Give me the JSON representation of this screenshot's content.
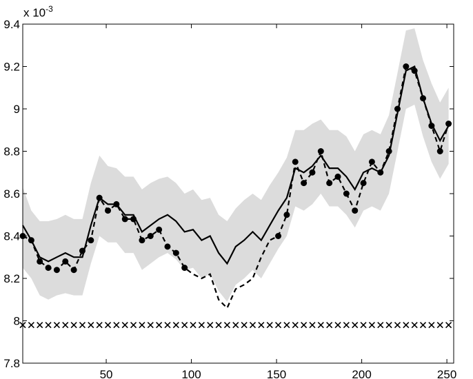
{
  "chart_data": {
    "type": "line",
    "y_exponent_label": {
      "base": "x 10",
      "exponent": "-3"
    },
    "xlim": [
      1,
      254
    ],
    "ylim": [
      7.8,
      9.4
    ],
    "xticks": [
      50,
      100,
      150,
      200,
      250
    ],
    "yticks": [
      7.8,
      8,
      8.2,
      8.4,
      8.6,
      8.8,
      9,
      9.2,
      9.4
    ],
    "grid": false,
    "x": [
      1,
      6,
      11,
      16,
      21,
      26,
      31,
      36,
      41,
      46,
      51,
      56,
      61,
      66,
      71,
      76,
      81,
      86,
      91,
      96,
      101,
      106,
      111,
      116,
      121,
      126,
      131,
      136,
      141,
      146,
      151,
      156,
      161,
      166,
      171,
      176,
      181,
      186,
      191,
      196,
      201,
      206,
      211,
      216,
      221,
      226,
      231,
      236,
      241,
      246,
      251
    ],
    "series": [
      {
        "style": "band",
        "color": "#dcdcdc",
        "upper": [
          8.63,
          8.52,
          8.47,
          8.47,
          8.48,
          8.5,
          8.48,
          8.48,
          8.65,
          8.78,
          8.73,
          8.72,
          8.68,
          8.68,
          8.62,
          8.65,
          8.67,
          8.68,
          8.65,
          8.6,
          8.62,
          8.57,
          8.58,
          8.5,
          8.47,
          8.53,
          8.57,
          8.6,
          8.57,
          8.64,
          8.7,
          8.77,
          8.9,
          8.9,
          8.93,
          8.95,
          8.9,
          8.9,
          8.87,
          8.8,
          8.88,
          8.9,
          8.88,
          8.97,
          9.17,
          9.37,
          9.38,
          9.23,
          9.12,
          9.03,
          9.1
        ],
        "lower": [
          8.25,
          8.2,
          8.12,
          8.1,
          8.12,
          8.13,
          8.12,
          8.12,
          8.27,
          8.4,
          8.37,
          8.37,
          8.32,
          8.32,
          8.24,
          8.27,
          8.3,
          8.32,
          8.29,
          8.24,
          8.25,
          8.2,
          8.22,
          8.14,
          8.09,
          8.17,
          8.2,
          8.24,
          8.2,
          8.27,
          8.34,
          8.4,
          8.54,
          8.52,
          8.55,
          8.6,
          8.54,
          8.54,
          8.5,
          8.44,
          8.52,
          8.54,
          8.52,
          8.6,
          8.8,
          9.0,
          9.02,
          8.87,
          8.75,
          8.67,
          8.74
        ]
      },
      {
        "style": "solid",
        "color": "#000000",
        "values": [
          8.45,
          8.38,
          8.3,
          8.28,
          8.3,
          8.32,
          8.3,
          8.3,
          8.45,
          8.58,
          8.55,
          8.55,
          8.5,
          8.5,
          8.42,
          8.45,
          8.48,
          8.5,
          8.47,
          8.42,
          8.43,
          8.38,
          8.4,
          8.32,
          8.27,
          8.35,
          8.38,
          8.42,
          8.38,
          8.45,
          8.52,
          8.58,
          8.72,
          8.7,
          8.73,
          8.78,
          8.72,
          8.72,
          8.68,
          8.62,
          8.7,
          8.72,
          8.7,
          8.78,
          8.98,
          9.18,
          9.2,
          9.05,
          8.93,
          8.85,
          8.92
        ]
      },
      {
        "style": "dashed",
        "color": "#000000",
        "values": [
          8.4,
          8.38,
          8.28,
          8.25,
          8.24,
          8.28,
          8.24,
          8.33,
          8.38,
          8.58,
          8.52,
          8.55,
          8.48,
          8.48,
          8.38,
          8.4,
          8.43,
          8.35,
          8.32,
          8.25,
          8.22,
          8.2,
          8.22,
          8.1,
          8.06,
          8.15,
          8.17,
          8.2,
          8.3,
          8.38,
          8.4,
          8.5,
          8.75,
          8.65,
          8.7,
          8.8,
          8.65,
          8.68,
          8.6,
          8.52,
          8.65,
          8.75,
          8.7,
          8.8,
          9.0,
          9.2,
          9.18,
          9.05,
          8.92,
          8.8,
          8.93
        ]
      },
      {
        "style": "dots",
        "color": "#000000",
        "values": [
          8.4,
          8.38,
          8.28,
          8.25,
          8.24,
          8.28,
          8.24,
          8.33,
          8.38,
          8.58,
          8.52,
          8.55,
          8.48,
          8.48,
          8.38,
          8.4,
          8.43,
          8.35,
          8.32,
          8.25,
          null,
          null,
          null,
          null,
          null,
          null,
          null,
          null,
          null,
          null,
          8.4,
          8.5,
          8.75,
          8.65,
          8.7,
          8.8,
          8.65,
          8.68,
          8.6,
          8.52,
          8.65,
          8.75,
          8.7,
          8.8,
          9.0,
          9.2,
          9.18,
          9.05,
          8.92,
          8.8,
          8.93
        ]
      },
      {
        "style": "x-markers",
        "color": "#000000",
        "values": [
          7.98,
          7.98,
          7.98,
          7.98,
          7.98,
          7.98,
          7.98,
          7.98,
          7.98,
          7.98,
          7.98,
          7.98,
          7.98,
          7.98,
          7.98,
          7.98,
          7.98,
          7.98,
          7.98,
          7.98,
          7.98,
          7.98,
          7.98,
          7.98,
          7.98,
          7.98,
          7.98,
          7.98,
          7.98,
          7.98,
          7.98,
          7.98,
          7.98,
          7.98,
          7.98,
          7.98,
          7.98,
          7.98,
          7.98,
          7.98,
          7.98,
          7.98,
          7.98,
          7.98,
          7.98,
          7.98,
          7.98,
          7.98,
          7.98,
          7.98,
          7.98
        ]
      }
    ]
  }
}
